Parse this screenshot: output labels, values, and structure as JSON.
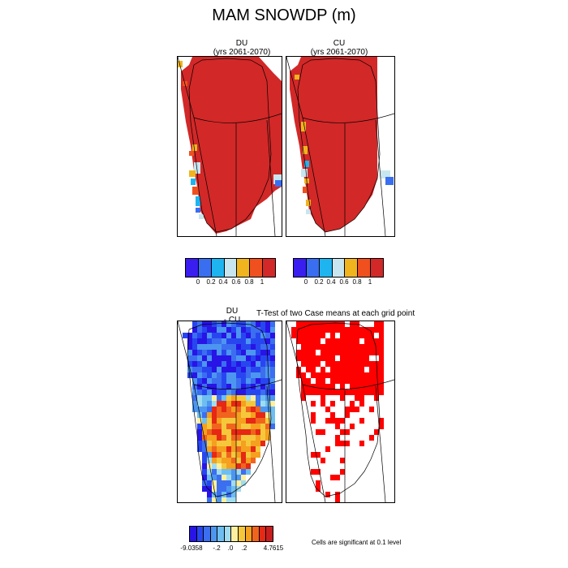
{
  "figure": {
    "title": "MAM SNOWDP (m)"
  },
  "panels": {
    "du": {
      "title_line1": "DU",
      "title_line2": "(yrs 2061-2070)"
    },
    "cu": {
      "title_line1": "CU",
      "title_line2": "(yrs 2061-2070)"
    },
    "diff": {
      "title_line1": "DU",
      "title_line2": "- CU"
    },
    "ttest": {
      "title": "T-Test of two Case means at each grid point"
    }
  },
  "colorbars": {
    "du": {
      "colors": [
        "#3a1ef0",
        "#3a6ef0",
        "#1eb4f0",
        "#c8e6f0",
        "#f0b41e",
        "#f0501e",
        "#d22828"
      ],
      "ticks": [
        "0",
        "0.2",
        "0.4",
        "0.6",
        "0.8",
        "1"
      ]
    },
    "cu": {
      "colors": [
        "#3a1ef0",
        "#3a6ef0",
        "#1eb4f0",
        "#c8e6f0",
        "#f0b41e",
        "#f0501e",
        "#d22828"
      ],
      "ticks": [
        "0",
        "0.2",
        "0.4",
        "0.6",
        "0.8",
        "1"
      ]
    },
    "diff": {
      "colors": [
        "#2814e6",
        "#2846f0",
        "#3c6ef0",
        "#4c96f0",
        "#6ebef0",
        "#a0dcf0",
        "#fff0a0",
        "#f5c83c",
        "#f5a01e",
        "#f0641e",
        "#e62814",
        "#c81e1e"
      ],
      "ticks": [
        "-9.0358",
        "-.2",
        ".0",
        ".2",
        "4.7615"
      ]
    }
  },
  "significance_note": "Cells are significant at 0.1 level",
  "colors": {
    "snow_full": "#d22828",
    "significant": "#ff0000",
    "coast": "#000000"
  }
}
